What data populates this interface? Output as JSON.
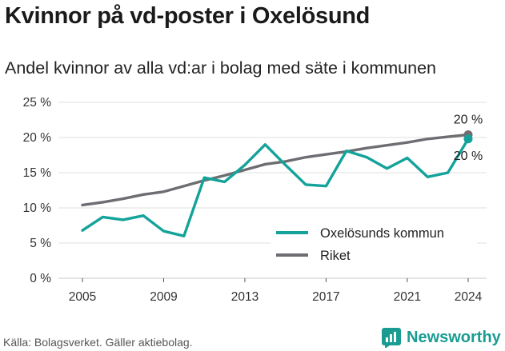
{
  "header": {
    "title": "Kvinnor på vd-poster i Oxelösund",
    "subtitle": "Andel kvinnor av alla vd:ar i bolag med säte i kommunen"
  },
  "footer": {
    "source": "Källa: Bolagsverket. Gäller aktiebolag.",
    "brand": "Newsworthy"
  },
  "colors": {
    "oxelosund": "#14a39a",
    "riket": "#6e6d72",
    "grid": "#d4d4d4",
    "brand": "#1a9c92"
  },
  "chart_data": {
    "type": "line",
    "title": "Kvinnor på vd-poster i Oxelösund",
    "subtitle": "Andel kvinnor av alla vd:ar i bolag med säte i kommunen",
    "x": [
      2005,
      2006,
      2007,
      2008,
      2009,
      2010,
      2011,
      2012,
      2013,
      2014,
      2015,
      2016,
      2017,
      2018,
      2019,
      2020,
      2021,
      2022,
      2023,
      2024
    ],
    "xticks": [
      2005,
      2009,
      2013,
      2017,
      2021,
      2024
    ],
    "yticks": [
      0,
      5,
      10,
      15,
      20,
      25
    ],
    "ytick_labels": [
      "0 %",
      "5 %",
      "10 %",
      "15 %",
      "20 %",
      "25 %"
    ],
    "ylim": [
      0,
      25
    ],
    "xlim": [
      2005,
      2024
    ],
    "grid": true,
    "legend_position": "lower-right",
    "series": [
      {
        "name": "Oxelösunds kommun",
        "color": "#14a39a",
        "values": [
          6.8,
          8.7,
          8.3,
          8.9,
          6.7,
          6.0,
          14.3,
          13.7,
          16.1,
          19.0,
          16.1,
          13.3,
          13.1,
          18.1,
          17.2,
          15.6,
          17.1,
          14.4,
          15.0,
          19.8
        ],
        "end_label": "20 %"
      },
      {
        "name": "Riket",
        "color": "#6e6d72",
        "values": [
          10.4,
          10.8,
          11.3,
          11.9,
          12.3,
          13.1,
          13.9,
          14.6,
          15.4,
          16.2,
          16.6,
          17.2,
          17.6,
          18.0,
          18.5,
          18.9,
          19.3,
          19.8,
          20.1,
          20.4
        ],
        "end_label": "20 %"
      }
    ]
  }
}
